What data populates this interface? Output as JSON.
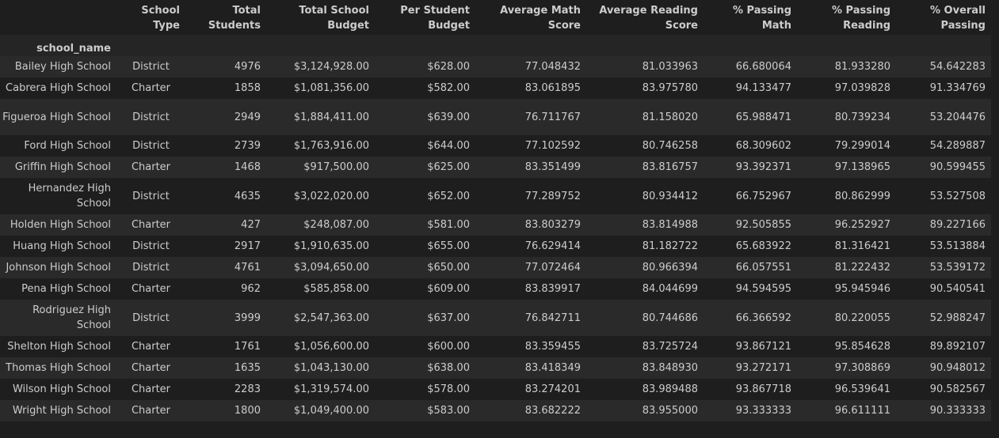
{
  "table": {
    "index_name": "school_name",
    "headers": [
      {
        "key": "type",
        "label": "School Type"
      },
      {
        "key": "students",
        "label": "Total Students"
      },
      {
        "key": "budget",
        "label": "Total School Budget"
      },
      {
        "key": "per_student",
        "label": "Per Student Budget"
      },
      {
        "key": "math",
        "label": "Average Math Score"
      },
      {
        "key": "reading",
        "label": "Average Reading Score"
      },
      {
        "key": "pass_math",
        "label": "% Passing Math"
      },
      {
        "key": "pass_reading",
        "label": "% Passing Reading"
      },
      {
        "key": "overall",
        "label": "% Overall Passing"
      }
    ],
    "rows": [
      {
        "name": "Bailey High School",
        "type": "District",
        "students": "4976",
        "budget": "$3,124,928.00",
        "per_student": "$628.00",
        "math": "77.048432",
        "reading": "81.033963",
        "pass_math": "66.680064",
        "pass_reading": "81.933280",
        "overall": "54.642283"
      },
      {
        "name": "Cabrera High School",
        "type": "Charter",
        "students": "1858",
        "budget": "$1,081,356.00",
        "per_student": "$582.00",
        "math": "83.061895",
        "reading": "83.975780",
        "pass_math": "94.133477",
        "pass_reading": "97.039828",
        "overall": "91.334769"
      },
      {
        "name": "Figueroa High School",
        "type": "District",
        "students": "2949",
        "budget": "$1,884,411.00",
        "per_student": "$639.00",
        "math": "76.711767",
        "reading": "81.158020",
        "pass_math": "65.988471",
        "pass_reading": "80.739234",
        "overall": "53.204476"
      },
      {
        "name": "Ford High School",
        "type": "District",
        "students": "2739",
        "budget": "$1,763,916.00",
        "per_student": "$644.00",
        "math": "77.102592",
        "reading": "80.746258",
        "pass_math": "68.309602",
        "pass_reading": "79.299014",
        "overall": "54.289887"
      },
      {
        "name": "Griffin High School",
        "type": "Charter",
        "students": "1468",
        "budget": "$917,500.00",
        "per_student": "$625.00",
        "math": "83.351499",
        "reading": "83.816757",
        "pass_math": "93.392371",
        "pass_reading": "97.138965",
        "overall": "90.599455"
      },
      {
        "name": "Hernandez High School",
        "type": "District",
        "students": "4635",
        "budget": "$3,022,020.00",
        "per_student": "$652.00",
        "math": "77.289752",
        "reading": "80.934412",
        "pass_math": "66.752967",
        "pass_reading": "80.862999",
        "overall": "53.527508"
      },
      {
        "name": "Holden High School",
        "type": "Charter",
        "students": "427",
        "budget": "$248,087.00",
        "per_student": "$581.00",
        "math": "83.803279",
        "reading": "83.814988",
        "pass_math": "92.505855",
        "pass_reading": "96.252927",
        "overall": "89.227166"
      },
      {
        "name": "Huang High School",
        "type": "District",
        "students": "2917",
        "budget": "$1,910,635.00",
        "per_student": "$655.00",
        "math": "76.629414",
        "reading": "81.182722",
        "pass_math": "65.683922",
        "pass_reading": "81.316421",
        "overall": "53.513884"
      },
      {
        "name": "Johnson High School",
        "type": "District",
        "students": "4761",
        "budget": "$3,094,650.00",
        "per_student": "$650.00",
        "math": "77.072464",
        "reading": "80.966394",
        "pass_math": "66.057551",
        "pass_reading": "81.222432",
        "overall": "53.539172"
      },
      {
        "name": "Pena High School",
        "type": "Charter",
        "students": "962",
        "budget": "$585,858.00",
        "per_student": "$609.00",
        "math": "83.839917",
        "reading": "84.044699",
        "pass_math": "94.594595",
        "pass_reading": "95.945946",
        "overall": "90.540541"
      },
      {
        "name": "Rodriguez High School",
        "type": "District",
        "students": "3999",
        "budget": "$2,547,363.00",
        "per_student": "$637.00",
        "math": "76.842711",
        "reading": "80.744686",
        "pass_math": "66.366592",
        "pass_reading": "80.220055",
        "overall": "52.988247"
      },
      {
        "name": "Shelton High School",
        "type": "Charter",
        "students": "1761",
        "budget": "$1,056,600.00",
        "per_student": "$600.00",
        "math": "83.359455",
        "reading": "83.725724",
        "pass_math": "93.867121",
        "pass_reading": "95.854628",
        "overall": "89.892107"
      },
      {
        "name": "Thomas High School",
        "type": "Charter",
        "students": "1635",
        "budget": "$1,043,130.00",
        "per_student": "$638.00",
        "math": "83.418349",
        "reading": "83.848930",
        "pass_math": "93.272171",
        "pass_reading": "97.308869",
        "overall": "90.948012"
      },
      {
        "name": "Wilson High School",
        "type": "Charter",
        "students": "2283",
        "budget": "$1,319,574.00",
        "per_student": "$578.00",
        "math": "83.274201",
        "reading": "83.989488",
        "pass_math": "93.867718",
        "pass_reading": "96.539641",
        "overall": "90.582567"
      },
      {
        "name": "Wright High School",
        "type": "Charter",
        "students": "1800",
        "budget": "$1,049,400.00",
        "per_student": "$583.00",
        "math": "83.682222",
        "reading": "83.955000",
        "pass_math": "93.333333",
        "pass_reading": "96.611111",
        "overall": "90.333333"
      }
    ]
  }
}
